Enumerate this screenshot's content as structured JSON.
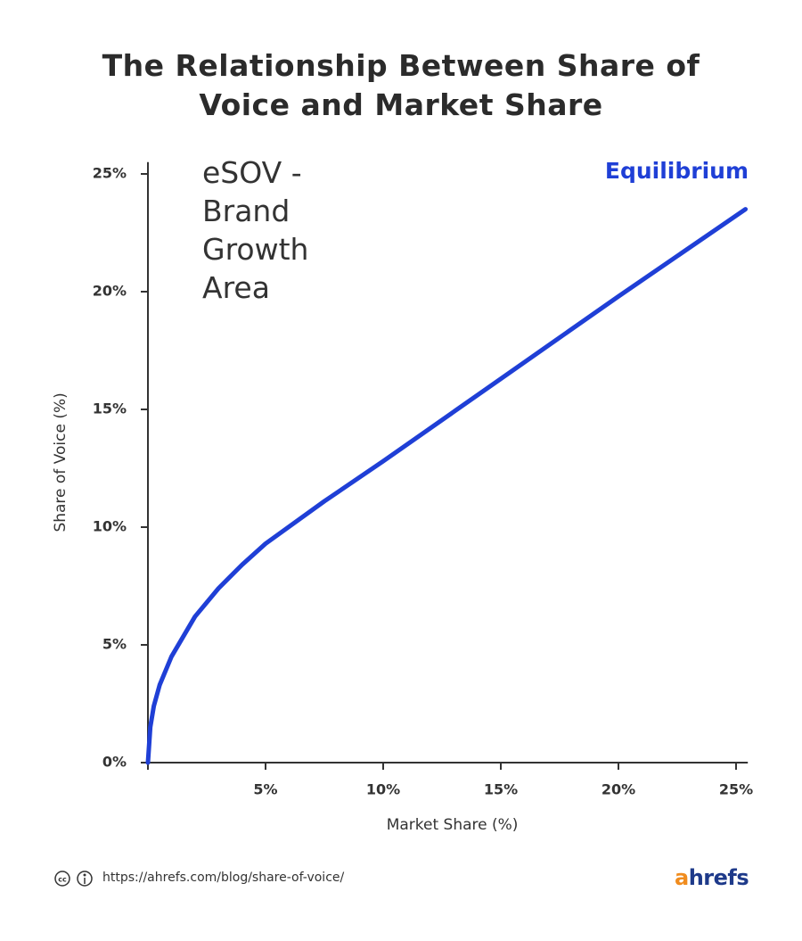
{
  "chart_data": {
    "type": "line",
    "title": "The Relationship Between Share of Voice and Market Share",
    "annotation": "eSOV - Brand Growth Area",
    "x_label": "Market Share (%)",
    "y_label": "Share of Voice (%)",
    "x": [
      0,
      0.1,
      0.25,
      0.5,
      1,
      2,
      3,
      4,
      5,
      7.5,
      10,
      15,
      20,
      25.4
    ],
    "series": [
      {
        "name": "Equilibrium",
        "color": "#1f3fd6",
        "values": [
          0,
          1.5,
          2.4,
          3.3,
          4.5,
          6.2,
          7.4,
          8.4,
          9.3,
          11.1,
          12.8,
          16.3,
          19.8,
          23.5
        ]
      }
    ],
    "xlim": [
      0,
      25.5
    ],
    "ylim": [
      0,
      25.5
    ],
    "xticks": [
      {
        "value": 5,
        "label": "5%"
      },
      {
        "value": 10,
        "label": "10%"
      },
      {
        "value": 15,
        "label": "15%"
      },
      {
        "value": 20,
        "label": "20%"
      },
      {
        "value": 25,
        "label": "25%"
      }
    ],
    "yticks": [
      {
        "value": 0,
        "label": "0%"
      },
      {
        "value": 5,
        "label": "5%"
      },
      {
        "value": 10,
        "label": "10%"
      },
      {
        "value": 15,
        "label": "15%"
      },
      {
        "value": 20,
        "label": "20%"
      },
      {
        "value": 25,
        "label": "25%"
      }
    ]
  },
  "footer": {
    "url": "https://ahrefs.com/blog/share-of-voice/",
    "brand": "ahrefs"
  }
}
